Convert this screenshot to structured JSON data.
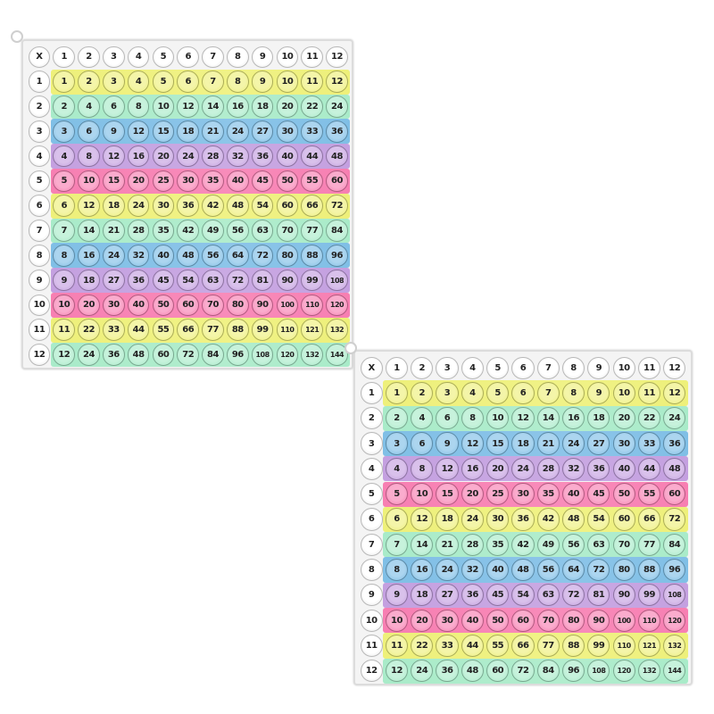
{
  "corner_label": "X",
  "column_headers": [
    "1",
    "2",
    "3",
    "4",
    "5",
    "6",
    "7",
    "8",
    "9",
    "10",
    "11",
    "12"
  ],
  "row_headers": [
    "1",
    "2",
    "3",
    "4",
    "5",
    "6",
    "7",
    "8",
    "9",
    "10",
    "11",
    "12"
  ],
  "rows": [
    [
      "1",
      "2",
      "3",
      "4",
      "5",
      "6",
      "7",
      "8",
      "9",
      "10",
      "11",
      "12"
    ],
    [
      "2",
      "4",
      "6",
      "8",
      "10",
      "12",
      "14",
      "16",
      "18",
      "20",
      "22",
      "24"
    ],
    [
      "3",
      "6",
      "9",
      "12",
      "15",
      "18",
      "21",
      "24",
      "27",
      "30",
      "33",
      "36"
    ],
    [
      "4",
      "8",
      "12",
      "16",
      "20",
      "24",
      "28",
      "32",
      "36",
      "40",
      "44",
      "48"
    ],
    [
      "5",
      "10",
      "15",
      "20",
      "25",
      "30",
      "35",
      "40",
      "45",
      "50",
      "55",
      "60"
    ],
    [
      "6",
      "12",
      "18",
      "24",
      "30",
      "36",
      "42",
      "48",
      "54",
      "60",
      "66",
      "72"
    ],
    [
      "7",
      "14",
      "21",
      "28",
      "35",
      "42",
      "49",
      "56",
      "63",
      "70",
      "77",
      "84"
    ],
    [
      "8",
      "16",
      "24",
      "32",
      "40",
      "48",
      "56",
      "64",
      "72",
      "80",
      "88",
      "96"
    ],
    [
      "9",
      "18",
      "27",
      "36",
      "45",
      "54",
      "63",
      "72",
      "81",
      "90",
      "99",
      "108"
    ],
    [
      "10",
      "20",
      "30",
      "40",
      "50",
      "60",
      "70",
      "80",
      "90",
      "100",
      "110",
      "120"
    ],
    [
      "11",
      "22",
      "33",
      "44",
      "55",
      "66",
      "77",
      "88",
      "99",
      "110",
      "121",
      "132"
    ],
    [
      "12",
      "24",
      "36",
      "48",
      "60",
      "72",
      "84",
      "96",
      "108",
      "120",
      "132",
      "144"
    ]
  ],
  "row_colors": [
    "#eef07a",
    "#a9ebc9",
    "#80bfe6",
    "#c4a0e0",
    "#f77fb2",
    "#eef07a",
    "#a9ebc9",
    "#80bfe6",
    "#c4a0e0",
    "#f77fb2",
    "#eef07a",
    "#a9ebc9"
  ]
}
